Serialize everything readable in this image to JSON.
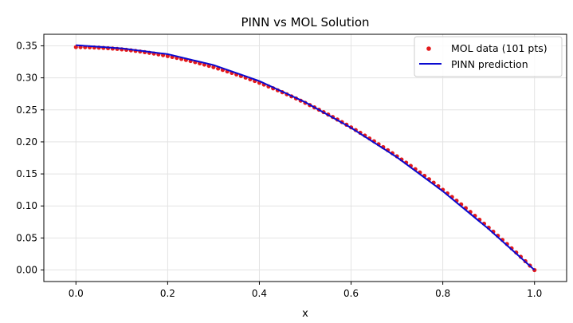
{
  "chart_data": {
    "type": "line",
    "title": "PINN vs MOL Solution",
    "xlabel": "x",
    "ylabel": "",
    "xlim": [
      -0.07,
      1.07
    ],
    "ylim": [
      -0.018,
      0.368
    ],
    "xticks": [
      "0.0",
      "0.2",
      "0.4",
      "0.6",
      "0.8",
      "1.0"
    ],
    "yticks": [
      "0.00",
      "0.05",
      "0.10",
      "0.15",
      "0.20",
      "0.25",
      "0.30",
      "0.35"
    ],
    "grid": true,
    "legend_position": "top-right",
    "series": [
      {
        "name": "MOL data (101 pts)",
        "kind": "scatter",
        "color": "#e31a1c",
        "n_points": 101,
        "x_range": [
          0.0,
          1.0
        ],
        "curve": "y = 0.348 * (1 - x^2)"
      },
      {
        "name": "PINN prediction",
        "kind": "line",
        "color": "#0a0ad0",
        "x": [
          0.0,
          0.1,
          0.2,
          0.3,
          0.4,
          0.5,
          0.6,
          0.7,
          0.8,
          0.9,
          1.0
        ],
        "y": [
          0.351,
          0.346,
          0.337,
          0.32,
          0.295,
          0.262,
          0.222,
          0.176,
          0.123,
          0.064,
          0.0
        ]
      }
    ]
  }
}
